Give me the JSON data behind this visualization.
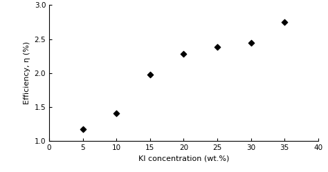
{
  "x": [
    5,
    10,
    15,
    20,
    25,
    30,
    35
  ],
  "y": [
    1.17,
    1.41,
    1.98,
    2.28,
    2.38,
    2.45,
    2.75
  ],
  "xlabel": "KI concentration (wt.%)",
  "ylabel": "Efficiency, η (%)",
  "xlim": [
    0,
    40
  ],
  "ylim": [
    1.0,
    3.0
  ],
  "xticks": [
    0,
    5,
    10,
    15,
    20,
    25,
    30,
    35,
    40
  ],
  "yticks": [
    1.0,
    1.5,
    2.0,
    2.5,
    3.0
  ],
  "marker": "D",
  "marker_color": "black",
  "marker_size": 18,
  "background_color": "#ffffff",
  "label_fontsize": 8,
  "tick_fontsize": 7.5
}
